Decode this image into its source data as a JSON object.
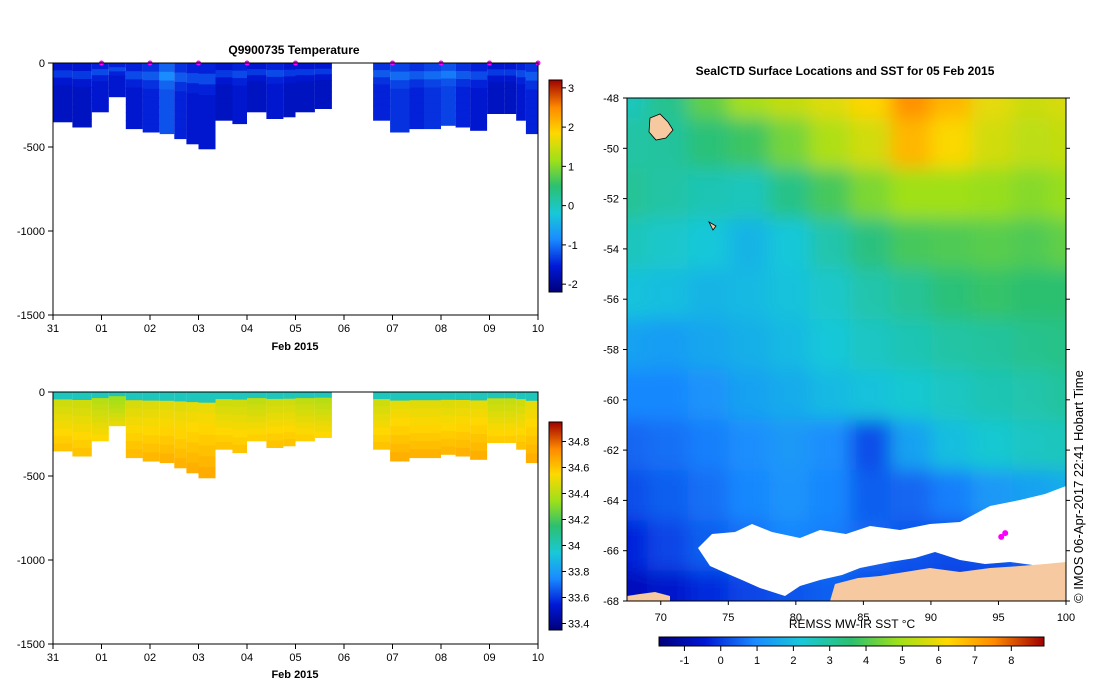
{
  "chart_data": [
    {
      "id": "temperature",
      "type": "heatmap",
      "title": "Q9900735  Temperature",
      "xlabel": "Feb 2015",
      "xticks": [
        "31",
        "01",
        "02",
        "03",
        "04",
        "05",
        "06",
        "07",
        "08",
        "09",
        "10"
      ],
      "ylabel": "",
      "yticks": [
        0,
        -500,
        -1000,
        -1500
      ],
      "ylim": [
        -1500,
        0
      ],
      "colorbar": {
        "ticks": [
          3,
          2,
          1,
          0,
          -1,
          -2
        ],
        "range": [
          -2.2,
          3.2
        ],
        "colormap": "rainbow"
      },
      "dive_markers_day": [
        1.0,
        2.0,
        3.0,
        4.0,
        5.0,
        7.0,
        8.0,
        9.0,
        10.0
      ],
      "profiles": [
        {
          "day": 0.0,
          "depth": 350,
          "value": -1.7
        },
        {
          "day": 0.4,
          "depth": 380,
          "value": -1.7
        },
        {
          "day": 0.8,
          "depth": 290,
          "value": -1.6
        },
        {
          "day": 1.15,
          "depth": 200,
          "value": -1.6
        },
        {
          "day": 1.5,
          "depth": 390,
          "value": -1.6
        },
        {
          "day": 1.85,
          "depth": 410,
          "value": -1.5
        },
        {
          "day": 2.2,
          "depth": 420,
          "value": -1.2
        },
        {
          "day": 2.5,
          "depth": 450,
          "value": -1.5
        },
        {
          "day": 2.75,
          "depth": 480,
          "value": -1.6
        },
        {
          "day": 3.0,
          "depth": 510,
          "value": -1.6
        },
        {
          "day": 3.35,
          "depth": 340,
          "value": -1.7
        },
        {
          "day": 3.7,
          "depth": 360,
          "value": -1.6
        },
        {
          "day": 4.0,
          "depth": 290,
          "value": -1.7
        },
        {
          "day": 4.4,
          "depth": 330,
          "value": -1.6
        },
        {
          "day": 4.75,
          "depth": 320,
          "value": -1.7
        },
        {
          "day": 5.0,
          "depth": 290,
          "value": -1.7
        },
        {
          "day": 5.4,
          "depth": 270,
          "value": -1.7
        },
        {
          "day": 6.6,
          "depth": 340,
          "value": -1.5
        },
        {
          "day": 6.95,
          "depth": 410,
          "value": -1.4
        },
        {
          "day": 7.35,
          "depth": 390,
          "value": -1.5
        },
        {
          "day": 7.65,
          "depth": 390,
          "value": -1.4
        },
        {
          "day": 8.0,
          "depth": 370,
          "value": -1.3
        },
        {
          "day": 8.3,
          "depth": 380,
          "value": -1.5
        },
        {
          "day": 8.6,
          "depth": 400,
          "value": -1.6
        },
        {
          "day": 8.95,
          "depth": 300,
          "value": -1.7
        },
        {
          "day": 9.3,
          "depth": 300,
          "value": -1.7
        },
        {
          "day": 9.55,
          "depth": 340,
          "value": -1.6
        },
        {
          "day": 9.75,
          "depth": 420,
          "value": -1.5
        }
      ]
    },
    {
      "id": "salinity",
      "type": "heatmap",
      "title": "",
      "xlabel": "Feb 2015",
      "xticks": [
        "31",
        "01",
        "02",
        "03",
        "04",
        "05",
        "06",
        "07",
        "08",
        "09",
        "10"
      ],
      "ylabel": "",
      "yticks": [
        0,
        -500,
        -1000,
        -1500
      ],
      "ylim": [
        -1500,
        0
      ],
      "colorbar": {
        "ticks": [
          34.8,
          34.6,
          34.4,
          34.2,
          34,
          33.8,
          33.6,
          33.4
        ],
        "range": [
          33.35,
          34.95
        ],
        "colormap": "rainbow"
      },
      "surface_value": 34.0,
      "profiles": [
        {
          "day": 0.0,
          "depth": 350,
          "value": 34.6
        },
        {
          "day": 0.4,
          "depth": 380,
          "value": 34.6
        },
        {
          "day": 0.8,
          "depth": 290,
          "value": 34.55
        },
        {
          "day": 1.15,
          "depth": 200,
          "value": 34.5
        },
        {
          "day": 1.5,
          "depth": 390,
          "value": 34.62
        },
        {
          "day": 1.85,
          "depth": 410,
          "value": 34.63
        },
        {
          "day": 2.2,
          "depth": 420,
          "value": 34.64
        },
        {
          "day": 2.5,
          "depth": 450,
          "value": 34.64
        },
        {
          "day": 2.75,
          "depth": 480,
          "value": 34.65
        },
        {
          "day": 3.0,
          "depth": 510,
          "value": 34.66
        },
        {
          "day": 3.35,
          "depth": 340,
          "value": 34.6
        },
        {
          "day": 3.7,
          "depth": 360,
          "value": 34.6
        },
        {
          "day": 4.0,
          "depth": 290,
          "value": 34.57
        },
        {
          "day": 4.4,
          "depth": 330,
          "value": 34.6
        },
        {
          "day": 4.75,
          "depth": 320,
          "value": 34.6
        },
        {
          "day": 5.0,
          "depth": 290,
          "value": 34.57
        },
        {
          "day": 5.4,
          "depth": 270,
          "value": 34.55
        },
        {
          "day": 6.6,
          "depth": 340,
          "value": 34.6
        },
        {
          "day": 6.95,
          "depth": 410,
          "value": 34.65
        },
        {
          "day": 7.35,
          "depth": 390,
          "value": 34.64
        },
        {
          "day": 7.65,
          "depth": 390,
          "value": 34.64
        },
        {
          "day": 8.0,
          "depth": 370,
          "value": 34.63
        },
        {
          "day": 8.3,
          "depth": 380,
          "value": 34.64
        },
        {
          "day": 8.6,
          "depth": 400,
          "value": 34.65
        },
        {
          "day": 8.95,
          "depth": 300,
          "value": 34.58
        },
        {
          "day": 9.3,
          "depth": 300,
          "value": 34.58
        },
        {
          "day": 9.55,
          "depth": 340,
          "value": 34.6
        },
        {
          "day": 9.75,
          "depth": 420,
          "value": 34.65
        }
      ]
    },
    {
      "id": "sst-map",
      "type": "heatmap",
      "title": "SealCTD Surface Locations and SST for 05 Feb 2015",
      "xlabel": "",
      "ylabel": "",
      "xticks": [
        70,
        75,
        80,
        85,
        90,
        95,
        100
      ],
      "yticks": [
        -48,
        -50,
        -52,
        -54,
        -56,
        -58,
        -60,
        -62,
        -64,
        -66,
        -68
      ],
      "xlim": [
        67.5,
        100
      ],
      "ylim": [
        -68,
        -48
      ],
      "colorbar": {
        "label": "REMSS MW-IR SST °C",
        "ticks": [
          -1,
          0,
          1,
          2,
          3,
          4,
          5,
          6,
          7,
          8
        ],
        "range": [
          -1.7,
          8.9
        ],
        "colormap": "rainbow"
      },
      "sst_rows": [
        {
          "lat": -48,
          "values": [
            2.6,
            3.2,
            4.2,
            5.0,
            5.4,
            5.8,
            6.3,
            7.4,
            6.8,
            5.9,
            5.5,
            5.7
          ]
        },
        {
          "lat": -50,
          "values": [
            2.9,
            3.0,
            3.5,
            3.8,
            4.4,
            5.1,
            5.6,
            6.8,
            6.2,
            5.6,
            5.3,
            5.4
          ]
        },
        {
          "lat": -52,
          "values": [
            3.1,
            2.9,
            2.7,
            2.6,
            3.3,
            3.9,
            4.5,
            4.9,
            4.9,
            4.8,
            4.6,
            4.8
          ]
        },
        {
          "lat": -54,
          "values": [
            2.6,
            2.4,
            2.2,
            1.8,
            2.2,
            2.8,
            3.4,
            3.9,
            4.0,
            4.1,
            4.0,
            4.2
          ]
        },
        {
          "lat": -56,
          "values": [
            2.1,
            2.0,
            1.8,
            1.9,
            2.1,
            2.4,
            2.8,
            3.1,
            3.5,
            3.7,
            3.6,
            3.6
          ]
        },
        {
          "lat": -58,
          "values": [
            1.4,
            1.3,
            1.5,
            1.7,
            1.9,
            2.2,
            2.5,
            2.7,
            2.9,
            3.0,
            3.2,
            3.3
          ]
        },
        {
          "lat": -60,
          "values": [
            0.9,
            0.9,
            1.1,
            1.4,
            1.6,
            1.9,
            2.1,
            2.3,
            2.5,
            2.7,
            2.8,
            3.0
          ]
        },
        {
          "lat": -62,
          "values": [
            0.5,
            0.6,
            0.8,
            1.0,
            1.2,
            1.0,
            0.2,
            1.4,
            2.0,
            2.3,
            2.5,
            2.6
          ]
        },
        {
          "lat": -64,
          "values": [
            0.2,
            0.4,
            0.6,
            0.9,
            1.1,
            0.9,
            0.4,
            0.5,
            0.8,
            1.2,
            1.4,
            1.6
          ]
        },
        {
          "lat": -66,
          "values": [
            -0.3,
            0.1,
            0.4,
            0.6,
            0.9,
            0.8,
            0.5,
            0.3,
            0.2,
            0.3,
            0.5,
            0.6
          ]
        },
        {
          "lat": -68,
          "values": [
            -0.8,
            -0.6,
            -0.2,
            0.1,
            0.3,
            0.4,
            0.2,
            0.1,
            0.0,
            0.0,
            0.0,
            0.0
          ]
        }
      ],
      "sst_lons": [
        67.5,
        70.5,
        73.5,
        76.5,
        79.5,
        82.5,
        85.5,
        88.5,
        91.5,
        94.5,
        97.5,
        100
      ],
      "seal_locations": [
        {
          "lon": 95.5,
          "lat": -65.3
        },
        {
          "lon": 95.2,
          "lat": -65.45
        }
      ]
    }
  ],
  "credit": "©  IMOS 06-Apr-2017 22:41 Hobart Time",
  "colors": {
    "ice": "#ffffff",
    "land": "#f6c9a0",
    "seal_marker": "#ff00ff"
  }
}
